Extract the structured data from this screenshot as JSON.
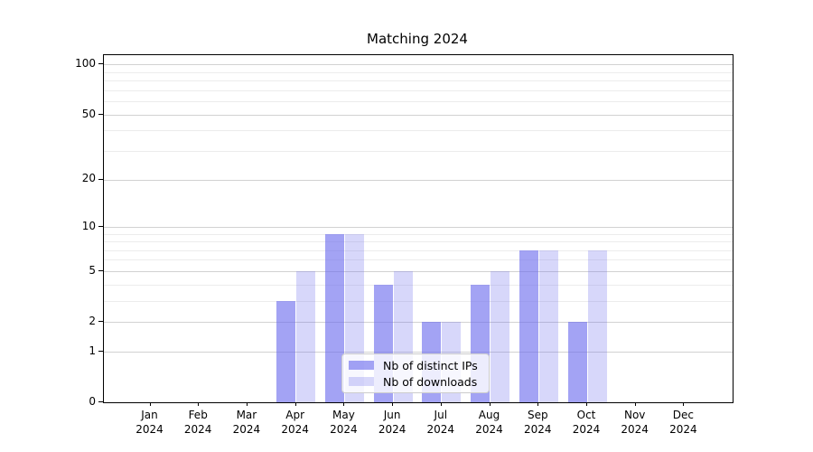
{
  "title": "Matching 2024",
  "chart_data": {
    "type": "bar",
    "title": "Matching 2024",
    "categories": [
      "Jan",
      "Feb",
      "Mar",
      "Apr",
      "May",
      "Jun",
      "Jul",
      "Aug",
      "Sep",
      "Oct",
      "Nov",
      "Dec"
    ],
    "x_year_line": "2024",
    "series": [
      {
        "name": "Nb of distinct IPs",
        "color": "rgba(106,106,238,0.62)",
        "values": [
          0,
          0,
          0,
          3,
          9,
          4,
          2,
          4,
          7,
          2,
          0,
          0
        ]
      },
      {
        "name": "Nb of downloads",
        "color": "rgba(106,106,238,0.27)",
        "values": [
          0,
          0,
          0,
          5,
          9,
          5,
          2,
          5,
          7,
          7,
          0,
          0
        ]
      }
    ],
    "xlabel": "",
    "ylabel": "",
    "y_scale": "log1p",
    "ylim": [
      0,
      101
    ],
    "y_major_ticks": [
      0,
      1,
      2,
      5,
      10,
      20,
      50,
      100
    ],
    "y_minor_ticks": [
      3,
      4,
      6,
      7,
      8,
      9,
      30,
      40,
      60,
      70,
      80,
      90
    ],
    "grid": true,
    "legend_position": "lower center"
  },
  "colors": {
    "bar_base": "#6a6aee",
    "grid_major": "#d2d2d2",
    "grid_minor": "#ececec",
    "axis": "#000000",
    "background": "#ffffff"
  }
}
